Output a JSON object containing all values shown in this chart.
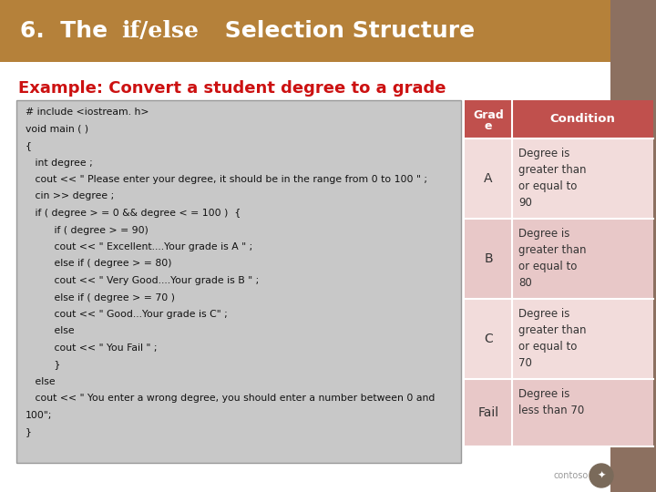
{
  "title_text": "6.  The ",
  "title_code": "if/else",
  "title_rest": " Selection Structure",
  "title_bg": "#b5813a",
  "title_text_color": "#ffffff",
  "bg_color": "#8c7060",
  "example_text": "Example: Convert a student degree to a grade",
  "example_color": "#cc1111",
  "slide_bg": "#ffffff",
  "code_bg": "#c8c8c8",
  "code_lines": [
    "# include <iostream. h>",
    "void main ( )",
    "{",
    "   int degree ;",
    "   cout << \" Please enter your degree, it should be in the range from 0 to 100 \" ;",
    "   cin >> degree ;",
    "   if ( degree > = 0 && degree < = 100 )  {",
    "         if ( degree > = 90)",
    "         cout << \" Excellent....Your grade is A \" ;",
    "         else if ( degree > = 80)",
    "         cout << \" Very Good....Your grade is B \" ;",
    "         else if ( degree > = 70 )",
    "         cout << \" Good...Your grade is C\" ;",
    "         else",
    "         cout << \" You Fail \" ;",
    "         }",
    "   else",
    "   cout << \" You enter a wrong degree, you should enter a number between 0 and",
    "100\";",
    "}"
  ],
  "table_header_bg": "#c0504d",
  "table_header_text": "#ffffff",
  "table_row_bg": "#f2dcdb",
  "table_row_bg_alt": "#e8c8c8",
  "table_grades": [
    "A",
    "B",
    "C",
    "Fail"
  ],
  "table_conditions": [
    "Degree is\ngreater than\nor equal to\n90",
    "Degree is\ngreater than\nor equal to\n80",
    "Degree is\ngreater than\nor equal to\n70",
    "Degree is\nless than 70"
  ],
  "contoso_text": "contoso",
  "contoso_color": "#999999",
  "contoso_circle": "#7a6a5a"
}
